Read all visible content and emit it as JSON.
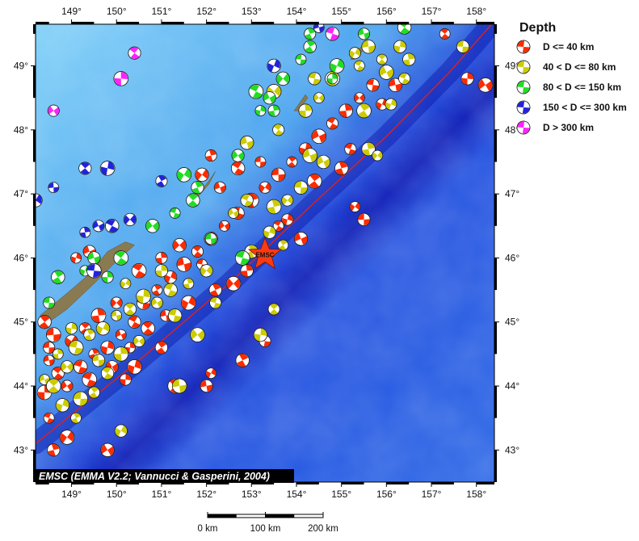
{
  "map": {
    "lon_range": [
      148.2,
      158.4
    ],
    "lat_range": [
      42.5,
      49.65
    ],
    "lon_ticks": [
      "149°",
      "150°",
      "151°",
      "152°",
      "153°",
      "154°",
      "155°",
      "156°",
      "157°",
      "158°"
    ],
    "lat_ticks": [
      "43°",
      "44°",
      "45°",
      "46°",
      "47°",
      "48°",
      "49°"
    ],
    "lon_tick_values": [
      149,
      150,
      151,
      152,
      153,
      154,
      155,
      156,
      157,
      158
    ],
    "lat_tick_values": [
      43,
      44,
      45,
      46,
      47,
      48,
      49
    ],
    "trench_line": [
      [
        148.2,
        43.1
      ],
      [
        150.5,
        44.4
      ],
      [
        152.5,
        45.6
      ],
      [
        154.3,
        46.8
      ],
      [
        156.0,
        47.9
      ],
      [
        157.4,
        48.9
      ],
      [
        158.4,
        49.7
      ]
    ],
    "islands": [
      [
        [
          148.3,
          45.1
        ],
        [
          148.9,
          45.45
        ],
        [
          149.4,
          45.75
        ],
        [
          149.8,
          46.1
        ],
        [
          150.2,
          46.25
        ],
        [
          150.4,
          46.2
        ],
        [
          150.0,
          45.95
        ],
        [
          149.5,
          45.6
        ],
        [
          148.9,
          45.2
        ],
        [
          148.4,
          44.95
        ]
      ],
      [
        [
          151.7,
          46.9
        ],
        [
          152.05,
          47.2
        ],
        [
          152.2,
          47.35
        ],
        [
          152.05,
          47.15
        ],
        [
          151.8,
          46.95
        ]
      ],
      [
        [
          153.95,
          48.3
        ],
        [
          154.2,
          48.55
        ],
        [
          154.25,
          48.5
        ],
        [
          154.05,
          48.3
        ]
      ],
      [
        [
          155.2,
          49.1
        ],
        [
          155.5,
          49.35
        ],
        [
          155.55,
          49.3
        ],
        [
          155.3,
          49.1
        ]
      ]
    ],
    "colors": {
      "deep_ocean": "#1a2fd6",
      "mid_ocean": "#2f6fe8",
      "shelf": "#5ab8f5",
      "trench": "#0a14a8",
      "trench_line": "#e0201c",
      "land": "#8a7a52"
    }
  },
  "legend": {
    "title": "Depth",
    "items": [
      {
        "label": "D <= 40 km",
        "color": "#ff2a00"
      },
      {
        "label": "40 < D <= 80 km",
        "color": "#cccc00"
      },
      {
        "label": "80 < D <= 150 km",
        "color": "#22dd22"
      },
      {
        "label": "150 < D <= 300 km",
        "color": "#2222dd"
      },
      {
        "label": "D > 300 km",
        "color": "#ff22ff"
      }
    ]
  },
  "event": {
    "label": "EMSC",
    "lon": 153.3,
    "lat": 46.05,
    "color": "#ff3a10"
  },
  "credit": "EMSC (EMMA V2.2; Vannucci & Gasperini, 2004)",
  "scale_bar": {
    "labels": [
      "0 km",
      "100 km",
      "200 km"
    ]
  },
  "mechanisms": [
    {
      "lon": 148.5,
      "lat": 44.4,
      "d": 1
    },
    {
      "lon": 148.7,
      "lat": 44.2,
      "d": 1
    },
    {
      "lon": 148.4,
      "lat": 43.9,
      "d": 1
    },
    {
      "lon": 148.9,
      "lat": 44.0,
      "d": 1
    },
    {
      "lon": 149.2,
      "lat": 44.3,
      "d": 1
    },
    {
      "lon": 149.5,
      "lat": 44.5,
      "d": 1
    },
    {
      "lon": 149.0,
      "lat": 44.7,
      "d": 1
    },
    {
      "lon": 148.6,
      "lat": 44.8,
      "d": 1
    },
    {
      "lon": 149.3,
      "lat": 44.9,
      "d": 1
    },
    {
      "lon": 149.8,
      "lat": 44.6,
      "d": 1
    },
    {
      "lon": 150.1,
      "lat": 44.8,
      "d": 1
    },
    {
      "lon": 150.4,
      "lat": 45.0,
      "d": 1
    },
    {
      "lon": 149.6,
      "lat": 45.1,
      "d": 1
    },
    {
      "lon": 150.0,
      "lat": 45.3,
      "d": 1
    },
    {
      "lon": 150.6,
      "lat": 45.3,
      "d": 1
    },
    {
      "lon": 150.9,
      "lat": 45.5,
      "d": 1
    },
    {
      "lon": 151.2,
      "lat": 45.7,
      "d": 1
    },
    {
      "lon": 151.5,
      "lat": 45.9,
      "d": 1
    },
    {
      "lon": 151.8,
      "lat": 46.1,
      "d": 1
    },
    {
      "lon": 152.1,
      "lat": 46.3,
      "d": 1
    },
    {
      "lon": 152.4,
      "lat": 46.5,
      "d": 1
    },
    {
      "lon": 152.7,
      "lat": 46.7,
      "d": 1
    },
    {
      "lon": 153.0,
      "lat": 46.9,
      "d": 1
    },
    {
      "lon": 153.3,
      "lat": 47.1,
      "d": 1
    },
    {
      "lon": 153.6,
      "lat": 47.3,
      "d": 1
    },
    {
      "lon": 153.9,
      "lat": 47.5,
      "d": 1
    },
    {
      "lon": 154.2,
      "lat": 47.7,
      "d": 1
    },
    {
      "lon": 154.5,
      "lat": 47.9,
      "d": 1
    },
    {
      "lon": 154.8,
      "lat": 48.1,
      "d": 1
    },
    {
      "lon": 155.1,
      "lat": 48.3,
      "d": 1
    },
    {
      "lon": 155.4,
      "lat": 48.5,
      "d": 1
    },
    {
      "lon": 155.7,
      "lat": 48.7,
      "d": 1
    },
    {
      "lon": 156.0,
      "lat": 48.9,
      "d": 1
    },
    {
      "lon": 155.9,
      "lat": 48.4,
      "d": 1
    },
    {
      "lon": 156.2,
      "lat": 48.7,
      "d": 1
    },
    {
      "lon": 157.3,
      "lat": 49.5,
      "d": 1
    },
    {
      "lon": 157.8,
      "lat": 48.8,
      "d": 1
    },
    {
      "lon": 158.2,
      "lat": 48.7,
      "d": 1
    },
    {
      "lon": 155.2,
      "lat": 47.7,
      "d": 1
    },
    {
      "lon": 155.0,
      "lat": 47.4,
      "d": 1
    },
    {
      "lon": 155.3,
      "lat": 46.8,
      "d": 1
    },
    {
      "lon": 155.5,
      "lat": 46.6,
      "d": 1
    },
    {
      "lon": 154.4,
      "lat": 47.2,
      "d": 1
    },
    {
      "lon": 153.8,
      "lat": 46.6,
      "d": 1
    },
    {
      "lon": 154.1,
      "lat": 46.3,
      "d": 1
    },
    {
      "lon": 153.6,
      "lat": 46.5,
      "d": 1
    },
    {
      "lon": 152.9,
      "lat": 45.8,
      "d": 1
    },
    {
      "lon": 152.6,
      "lat": 45.6,
      "d": 1
    },
    {
      "lon": 153.3,
      "lat": 44.7,
      "d": 1
    },
    {
      "lon": 152.8,
      "lat": 44.4,
      "d": 1
    },
    {
      "lon": 152.1,
      "lat": 44.2,
      "d": 1
    },
    {
      "lon": 152.0,
      "lat": 44.0,
      "d": 1
    },
    {
      "lon": 151.3,
      "lat": 44.0,
      "d": 1
    },
    {
      "lon": 150.2,
      "lat": 44.1,
      "d": 1
    },
    {
      "lon": 149.8,
      "lat": 43.0,
      "d": 1
    },
    {
      "lon": 148.5,
      "lat": 43.5,
      "d": 1
    },
    {
      "lon": 148.6,
      "lat": 43.0,
      "d": 1
    },
    {
      "lon": 148.9,
      "lat": 43.2,
      "d": 1
    },
    {
      "lon": 148.5,
      "lat": 44.6,
      "d": 1
    },
    {
      "lon": 148.4,
      "lat": 45.0,
      "d": 1
    },
    {
      "lon": 149.1,
      "lat": 46.0,
      "d": 1
    },
    {
      "lon": 149.4,
      "lat": 46.1,
      "d": 1
    },
    {
      "lon": 150.5,
      "lat": 45.8,
      "d": 1
    },
    {
      "lon": 151.0,
      "lat": 46.0,
      "d": 1
    },
    {
      "lon": 151.4,
      "lat": 46.2,
      "d": 1
    },
    {
      "lon": 151.9,
      "lat": 45.9,
      "d": 1
    },
    {
      "lon": 152.2,
      "lat": 45.5,
      "d": 1
    },
    {
      "lon": 151.6,
      "lat": 45.3,
      "d": 1
    },
    {
      "lon": 151.1,
      "lat": 45.1,
      "d": 1
    },
    {
      "lon": 150.7,
      "lat": 44.9,
      "d": 1
    },
    {
      "lon": 150.3,
      "lat": 44.6,
      "d": 1
    },
    {
      "lon": 149.9,
      "lat": 44.3,
      "d": 1
    },
    {
      "lon": 149.4,
      "lat": 44.1,
      "d": 1
    },
    {
      "lon": 152.1,
      "lat": 47.6,
      "d": 1
    },
    {
      "lon": 151.9,
      "lat": 47.3,
      "d": 1
    },
    {
      "lon": 153.2,
      "lat": 47.5,
      "d": 1
    },
    {
      "lon": 151.0,
      "lat": 44.6,
      "d": 1
    },
    {
      "lon": 150.4,
      "lat": 44.3,
      "d": 1
    },
    {
      "lon": 152.3,
      "lat": 47.1,
      "d": 1
    },
    {
      "lon": 152.7,
      "lat": 47.4,
      "d": 1
    },
    {
      "lon": 148.7,
      "lat": 44.5,
      "d": 2
    },
    {
      "lon": 148.9,
      "lat": 44.3,
      "d": 2
    },
    {
      "lon": 149.1,
      "lat": 44.6,
      "d": 2
    },
    {
      "lon": 149.4,
      "lat": 44.8,
      "d": 2
    },
    {
      "lon": 149.7,
      "lat": 44.9,
      "d": 2
    },
    {
      "lon": 150.0,
      "lat": 45.1,
      "d": 2
    },
    {
      "lon": 150.3,
      "lat": 45.2,
      "d": 2
    },
    {
      "lon": 150.6,
      "lat": 45.4,
      "d": 2
    },
    {
      "lon": 150.9,
      "lat": 45.3,
      "d": 2
    },
    {
      "lon": 151.2,
      "lat": 45.5,
      "d": 2
    },
    {
      "lon": 151.6,
      "lat": 45.6,
      "d": 2
    },
    {
      "lon": 152.0,
      "lat": 45.8,
      "d": 2
    },
    {
      "lon": 149.2,
      "lat": 43.8,
      "d": 2
    },
    {
      "lon": 149.5,
      "lat": 43.9,
      "d": 2
    },
    {
      "lon": 148.8,
      "lat": 43.7,
      "d": 2
    },
    {
      "lon": 148.4,
      "lat": 44.1,
      "d": 2
    },
    {
      "lon": 149.8,
      "lat": 44.2,
      "d": 2
    },
    {
      "lon": 150.1,
      "lat": 44.5,
      "d": 2
    },
    {
      "lon": 150.5,
      "lat": 44.7,
      "d": 2
    },
    {
      "lon": 151.3,
      "lat": 45.1,
      "d": 2
    },
    {
      "lon": 149.1,
      "lat": 43.5,
      "d": 2
    },
    {
      "lon": 150.1,
      "lat": 43.3,
      "d": 2
    },
    {
      "lon": 151.4,
      "lat": 44.0,
      "d": 2
    },
    {
      "lon": 153.5,
      "lat": 45.2,
      "d": 2
    },
    {
      "lon": 153.2,
      "lat": 44.8,
      "d": 2
    },
    {
      "lon": 152.6,
      "lat": 46.7,
      "d": 2
    },
    {
      "lon": 152.9,
      "lat": 46.9,
      "d": 2
    },
    {
      "lon": 153.5,
      "lat": 46.8,
      "d": 2
    },
    {
      "lon": 153.8,
      "lat": 46.9,
      "d": 2
    },
    {
      "lon": 154.1,
      "lat": 47.1,
      "d": 2
    },
    {
      "lon": 153.7,
      "lat": 46.2,
      "d": 2
    },
    {
      "lon": 153.4,
      "lat": 46.4,
      "d": 2
    },
    {
      "lon": 154.3,
      "lat": 47.6,
      "d": 2
    },
    {
      "lon": 153.6,
      "lat": 48.0,
      "d": 2
    },
    {
      "lon": 154.2,
      "lat": 48.3,
      "d": 2
    },
    {
      "lon": 154.5,
      "lat": 48.5,
      "d": 2
    },
    {
      "lon": 154.4,
      "lat": 48.8,
      "d": 2
    },
    {
      "lon": 154.8,
      "lat": 48.8,
      "d": 2
    },
    {
      "lon": 155.3,
      "lat": 49.2,
      "d": 2
    },
    {
      "lon": 155.6,
      "lat": 49.3,
      "d": 2
    },
    {
      "lon": 155.9,
      "lat": 49.1,
      "d": 2
    },
    {
      "lon": 156.3,
      "lat": 49.3,
      "d": 2
    },
    {
      "lon": 156.0,
      "lat": 48.9,
      "d": 2
    },
    {
      "lon": 156.4,
      "lat": 48.8,
      "d": 2
    },
    {
      "lon": 155.6,
      "lat": 47.7,
      "d": 2
    },
    {
      "lon": 155.8,
      "lat": 47.6,
      "d": 2
    },
    {
      "lon": 157.7,
      "lat": 49.3,
      "d": 2
    },
    {
      "lon": 155.5,
      "lat": 48.3,
      "d": 2
    },
    {
      "lon": 156.1,
      "lat": 48.4,
      "d": 2
    },
    {
      "lon": 152.9,
      "lat": 47.8,
      "d": 2
    },
    {
      "lon": 152.7,
      "lat": 47.6,
      "d": 2
    },
    {
      "lon": 151.0,
      "lat": 45.8,
      "d": 2
    },
    {
      "lon": 151.8,
      "lat": 44.8,
      "d": 2
    },
    {
      "lon": 152.2,
      "lat": 45.3,
      "d": 2
    },
    {
      "lon": 153.0,
      "lat": 46.1,
      "d": 2
    },
    {
      "lon": 150.2,
      "lat": 45.6,
      "d": 2
    },
    {
      "lon": 149.6,
      "lat": 44.4,
      "d": 2
    },
    {
      "lon": 148.6,
      "lat": 44.0,
      "d": 2
    },
    {
      "lon": 149.0,
      "lat": 44.9,
      "d": 2
    },
    {
      "lon": 154.6,
      "lat": 47.5,
      "d": 2
    },
    {
      "lon": 155.4,
      "lat": 49.0,
      "d": 2
    },
    {
      "lon": 156.5,
      "lat": 49.1,
      "d": 2
    },
    {
      "lon": 153.5,
      "lat": 48.6,
      "d": 2
    },
    {
      "lon": 148.5,
      "lat": 45.3,
      "d": 3
    },
    {
      "lon": 148.7,
      "lat": 45.7,
      "d": 3
    },
    {
      "lon": 149.3,
      "lat": 45.8,
      "d": 3
    },
    {
      "lon": 149.5,
      "lat": 46.0,
      "d": 3
    },
    {
      "lon": 150.1,
      "lat": 46.0,
      "d": 3
    },
    {
      "lon": 149.8,
      "lat": 45.7,
      "d": 3
    },
    {
      "lon": 150.8,
      "lat": 46.5,
      "d": 3
    },
    {
      "lon": 151.3,
      "lat": 46.7,
      "d": 3
    },
    {
      "lon": 151.8,
      "lat": 47.1,
      "d": 3
    },
    {
      "lon": 151.5,
      "lat": 47.3,
      "d": 3
    },
    {
      "lon": 152.1,
      "lat": 46.3,
      "d": 3
    },
    {
      "lon": 151.7,
      "lat": 46.9,
      "d": 3
    },
    {
      "lon": 153.2,
      "lat": 48.3,
      "d": 3
    },
    {
      "lon": 153.4,
      "lat": 48.5,
      "d": 3
    },
    {
      "lon": 153.1,
      "lat": 48.6,
      "d": 3
    },
    {
      "lon": 153.5,
      "lat": 48.3,
      "d": 3
    },
    {
      "lon": 153.7,
      "lat": 48.8,
      "d": 3
    },
    {
      "lon": 154.1,
      "lat": 49.1,
      "d": 3
    },
    {
      "lon": 154.3,
      "lat": 49.3,
      "d": 3
    },
    {
      "lon": 154.9,
      "lat": 49.0,
      "d": 3
    },
    {
      "lon": 155.5,
      "lat": 49.5,
      "d": 3
    },
    {
      "lon": 156.4,
      "lat": 49.6,
      "d": 3
    },
    {
      "lon": 154.8,
      "lat": 48.8,
      "d": 3
    },
    {
      "lon": 152.7,
      "lat": 47.6,
      "d": 3
    },
    {
      "lon": 152.8,
      "lat": 46.0,
      "d": 3
    },
    {
      "lon": 154.3,
      "lat": 49.5,
      "d": 3
    },
    {
      "lon": 148.2,
      "lat": 46.9,
      "d": 4
    },
    {
      "lon": 148.6,
      "lat": 47.1,
      "d": 4
    },
    {
      "lon": 149.3,
      "lat": 47.4,
      "d": 4
    },
    {
      "lon": 149.8,
      "lat": 47.4,
      "d": 4
    },
    {
      "lon": 149.6,
      "lat": 46.5,
      "d": 4
    },
    {
      "lon": 149.9,
      "lat": 46.5,
      "d": 4
    },
    {
      "lon": 149.3,
      "lat": 46.4,
      "d": 4
    },
    {
      "lon": 150.3,
      "lat": 46.6,
      "d": 4
    },
    {
      "lon": 149.5,
      "lat": 45.8,
      "d": 4
    },
    {
      "lon": 151.0,
      "lat": 47.2,
      "d": 4
    },
    {
      "lon": 153.5,
      "lat": 49.0,
      "d": 4
    },
    {
      "lon": 154.5,
      "lat": 49.6,
      "d": 4
    },
    {
      "lon": 150.4,
      "lat": 49.2,
      "d": 5
    },
    {
      "lon": 150.1,
      "lat": 48.8,
      "d": 5
    },
    {
      "lon": 148.6,
      "lat": 48.3,
      "d": 5
    },
    {
      "lon": 154.8,
      "lat": 49.5,
      "d": 5
    }
  ]
}
